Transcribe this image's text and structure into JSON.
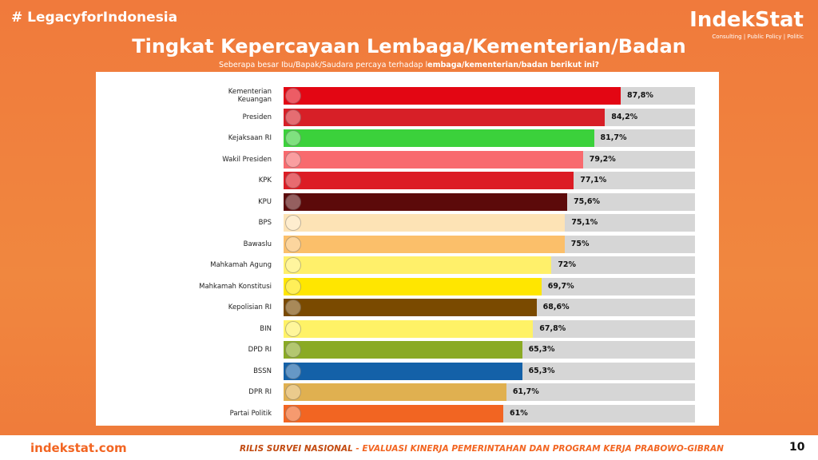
{
  "hashtag": "# LegacyforIndonesia",
  "brand": {
    "name": "IndekStat",
    "tagline": "Consulting | Public Policy | Politic"
  },
  "chart_data": {
    "type": "bar",
    "orientation": "horizontal",
    "title": "Tingkat Kepercayaan Lembaga/Kementerian/Badan",
    "subtitle_lead": "Seberapa besar Ibu/Bapak/Saudara percaya terhadap l",
    "subtitle_emphasis": "embaga/kementerian/badan berikut ini?",
    "categories": [
      "Kementerian\nKeuangan",
      "Presiden",
      "Kejaksaan RI",
      "Wakil Presiden",
      "KPK",
      "KPU",
      "BPS",
      "Bawaslu",
      "Mahkamah Agung",
      "Mahkamah Konstitusi",
      "Kepolisian RI",
      "BIN",
      "DPD RI",
      "BSSN",
      "DPR RI",
      "Partai Politik"
    ],
    "values": [
      87.8,
      84.2,
      81.7,
      79.2,
      77.1,
      75.6,
      75.1,
      75,
      72,
      69.7,
      68.6,
      67.8,
      65.3,
      65.3,
      61.7,
      61
    ],
    "value_labels": [
      "87,8%",
      "84,2%",
      "81,7%",
      "79,2%",
      "77,1%",
      "75,6%",
      "75,1%",
      "75%",
      "72%",
      "69,7%",
      "68,6%",
      "67,8%",
      "65,3%",
      "65,3%",
      "61,7%",
      "61%"
    ],
    "colors": [
      "#e30613",
      "#d71f27",
      "#3bd13b",
      "#f86a6e",
      "#dc1c24",
      "#5c0a0a",
      "#fde3b5",
      "#fbbf6a",
      "#fff06a",
      "#ffe600",
      "#7a4a00",
      "#fff266",
      "#8aaa24",
      "#1461a8",
      "#e0b050",
      "#f26522"
    ]
  },
  "footer": {
    "site": "indekstat.com",
    "release": "RILIS SURVEI NASIONAL",
    "release_detail": " - EVALUASI KINERJA PEMERINTAHAN DAN PROGRAM KERJA PRABOWO-GIBRAN",
    "page": "10"
  }
}
